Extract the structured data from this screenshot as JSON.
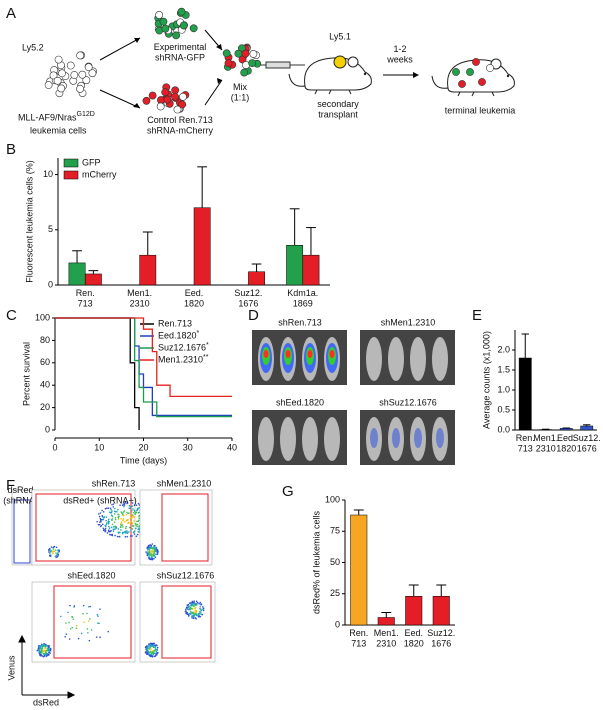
{
  "panel_labels": [
    "A",
    "B",
    "C",
    "D",
    "E",
    "F",
    "G"
  ],
  "diagram": {
    "donor": "Ly5.2",
    "cells_line1": "MLL-AF9/Nras",
    "cells_superscript": "G12D",
    "cells_line2": "leukemia cells",
    "experimental": "Experimental\nshRNA-GFP",
    "control": "Control Ren.713\nshRNA-mCherry",
    "mix": "Mix\n(1:1)",
    "recipient": "Ly5.1",
    "transplant": "secondary\ntransplant",
    "interval": "1-2\nweeks",
    "outcome": "terminal leukemia"
  },
  "imaging": {
    "labels": [
      "shRen.713",
      "shMen1.2310",
      "shEed.1820",
      "shSuz12.1676"
    ]
  },
  "flow": {
    "labels": [
      "shRen.713",
      "shMen1.2310",
      "shEed.1820",
      "shSuz12.1676"
    ],
    "gate_negative": "dsRed-\n(shRNA-)",
    "gate_positive": "dsRed+ (shRNA+)",
    "y_axis": "Venus",
    "x_axis": "dsRed"
  },
  "chart_data": [
    {
      "type": "bar",
      "ylabel": "Fluorescent leukemia cells (%)",
      "categories": [
        "Ren.\n713",
        "Men1.\n2310",
        "Eed.\n1820",
        "Suz12.\n1676",
        "Kdm1a.\n1869"
      ],
      "series": [
        {
          "name": "GFP",
          "color": "#22a04b",
          "values": [
            2.0,
            0,
            0,
            0,
            3.6
          ],
          "errors": [
            1.1,
            0,
            0,
            0,
            3.3
          ]
        },
        {
          "name": "mCherry",
          "color": "#e41e26",
          "values": [
            1.0,
            2.7,
            7.0,
            1.2,
            2.7
          ],
          "errors": [
            0.3,
            2.1,
            3.7,
            0.7,
            2.5
          ]
        }
      ],
      "ylim": [
        0,
        11.5
      ],
      "yticks": [
        0,
        5,
        10
      ],
      "legend": "upper left"
    },
    {
      "type": "line",
      "drawstyle": "steps-post",
      "ylabel": "Percent survival",
      "xlabel": "Time (days)",
      "xlim": [
        0,
        40
      ],
      "xticks": [
        0,
        10,
        20,
        30,
        40
      ],
      "ylim": [
        0,
        100
      ],
      "yticks": [
        0,
        20,
        40,
        60,
        80,
        100
      ],
      "legend": "upper right",
      "series": [
        {
          "name": "Ren.713",
          "color": "#000000",
          "x": [
            0,
            17,
            18,
            19
          ],
          "values": [
            100,
            60,
            20,
            0
          ]
        },
        {
          "name": "Eed.1820",
          "significance": "*",
          "color": "#1f3fbf",
          "x": [
            0,
            18,
            19,
            20,
            22,
            40
          ],
          "values": [
            100,
            75,
            50,
            38,
            13,
            13
          ]
        },
        {
          "name": "Suz12.1676",
          "significance": "*",
          "color": "#1a9b50",
          "x": [
            0,
            18,
            19,
            20,
            23,
            40
          ],
          "values": [
            100,
            62,
            38,
            25,
            12,
            12
          ]
        },
        {
          "name": "Men1.2310",
          "significance": "**",
          "color": "#e8201e",
          "x": [
            0,
            20,
            22,
            23,
            26,
            40
          ],
          "values": [
            100,
            90,
            70,
            40,
            30,
            30
          ]
        }
      ]
    },
    {
      "type": "bar",
      "ylabel": "Average counts (x1,000)",
      "categories": [
        "Ren.\n713",
        "Men1.\n2310",
        "Eed.\n1820",
        "Suz12.\n1676"
      ],
      "values": [
        1.8,
        0.01,
        0.04,
        0.1
      ],
      "errors": [
        0.6,
        0.01,
        0.01,
        0.03
      ],
      "colors": [
        "#000000",
        "#3355cc",
        "#3355cc",
        "#3355cc"
      ],
      "ylim": [
        0,
        2.5
      ],
      "yticks": [
        {
          "value": 0,
          "label": "0.0"
        },
        {
          "value": 0.5,
          "label": "0.5"
        },
        {
          "value": 1,
          "label": "1.0"
        },
        {
          "value": 1.5,
          "label": "1.5"
        },
        {
          "value": 2,
          "label": "2.0"
        }
      ]
    },
    {
      "type": "bar",
      "ylabel": "dsRed% of leukemia cells",
      "categories": [
        "Ren.\n713",
        "Men1.\n2310",
        "Eed.\n1820",
        "Suz12.\n1676"
      ],
      "values": [
        88,
        6,
        23,
        23
      ],
      "errors": [
        4,
        4,
        9,
        9
      ],
      "colors": [
        "#f5a623",
        "#e41e26",
        "#e41e26",
        "#e41e26"
      ],
      "ylim": [
        0,
        100
      ],
      "yticks": [
        0,
        25,
        50,
        75,
        100
      ]
    }
  ]
}
